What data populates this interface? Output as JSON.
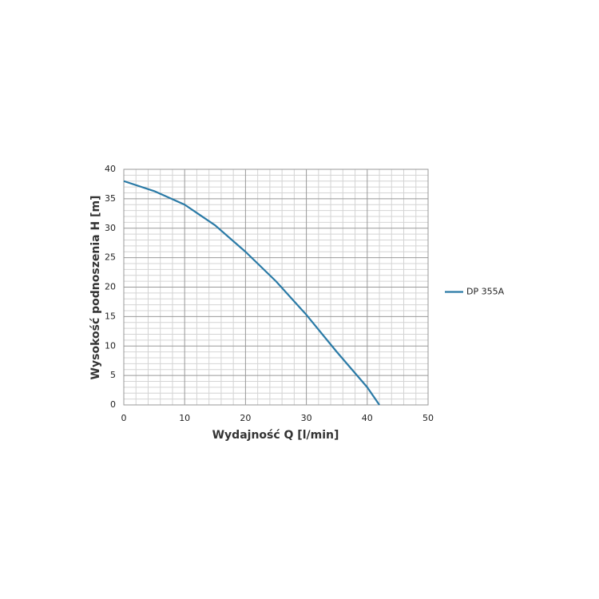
{
  "chart_data": {
    "type": "line",
    "x_label": "Wydajność Q [l/min]",
    "y_label": "Wysokość podnoszenia H [m]",
    "x": [
      0,
      5,
      10,
      15,
      20,
      25,
      30,
      35,
      40,
      42
    ],
    "series": [
      {
        "name": "DP 355A",
        "color": "#2a7aa6",
        "values": [
          38,
          36.3,
          34,
          30.5,
          26,
          21,
          15.3,
          9,
          3,
          0
        ]
      }
    ],
    "xlim": [
      0,
      50
    ],
    "xticks": [
      0,
      10,
      20,
      30,
      40,
      50
    ],
    "ylim": [
      0,
      40
    ],
    "yticks": [
      0,
      5,
      10,
      15,
      20,
      25,
      30,
      35,
      40
    ],
    "grid": true,
    "legend": "right"
  }
}
